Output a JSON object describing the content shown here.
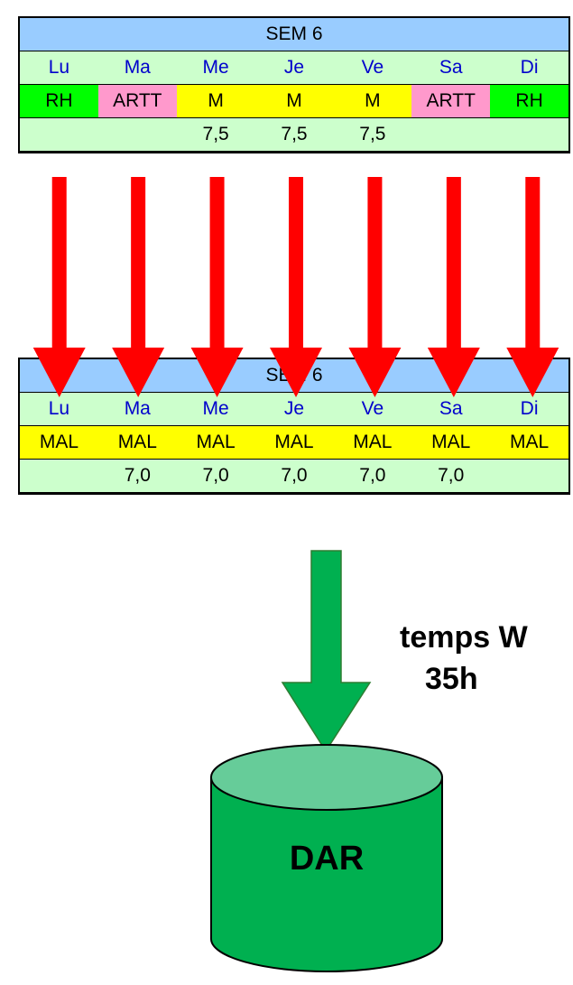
{
  "top": {
    "week_label": "SEM 6",
    "days": [
      "Lu",
      "Ma",
      "Me",
      "Je",
      "Ve",
      "Sa",
      "Di"
    ],
    "codes": [
      {
        "text": "RH",
        "color": "#00ff00"
      },
      {
        "text": "ARTT",
        "color": "#ff99cc"
      },
      {
        "text": "M",
        "color": "#ffff00"
      },
      {
        "text": "M",
        "color": "#ffff00"
      },
      {
        "text": "M",
        "color": "#ffff00"
      },
      {
        "text": "ARTT",
        "color": "#ff99cc"
      },
      {
        "text": "RH",
        "color": "#00ff00"
      }
    ],
    "hours": [
      "",
      "",
      "7,5",
      "7,5",
      "7,5",
      "",
      ""
    ]
  },
  "bottom": {
    "week_label": "SEM 6",
    "days": [
      "Lu",
      "Ma",
      "Me",
      "Je",
      "Ve",
      "Sa",
      "Di"
    ],
    "codes": [
      {
        "text": "MAL",
        "color": "#ffff00"
      },
      {
        "text": "MAL",
        "color": "#ffff00"
      },
      {
        "text": "MAL",
        "color": "#ffff00"
      },
      {
        "text": "MAL",
        "color": "#ffff00"
      },
      {
        "text": "MAL",
        "color": "#ffff00"
      },
      {
        "text": "MAL",
        "color": "#ffff00"
      },
      {
        "text": "MAL",
        "color": "#ffff00"
      }
    ],
    "hours": [
      "",
      "7,0",
      "7,0",
      "7,0",
      "7,0",
      "7,0",
      ""
    ]
  },
  "caption": {
    "line1": "temps W",
    "line2": "35h"
  },
  "database": {
    "label": "DAR",
    "color": "#00b050",
    "top_color": "#66cc99"
  },
  "arrow_colors": {
    "red": "#ff0000",
    "green": "#00b050"
  }
}
